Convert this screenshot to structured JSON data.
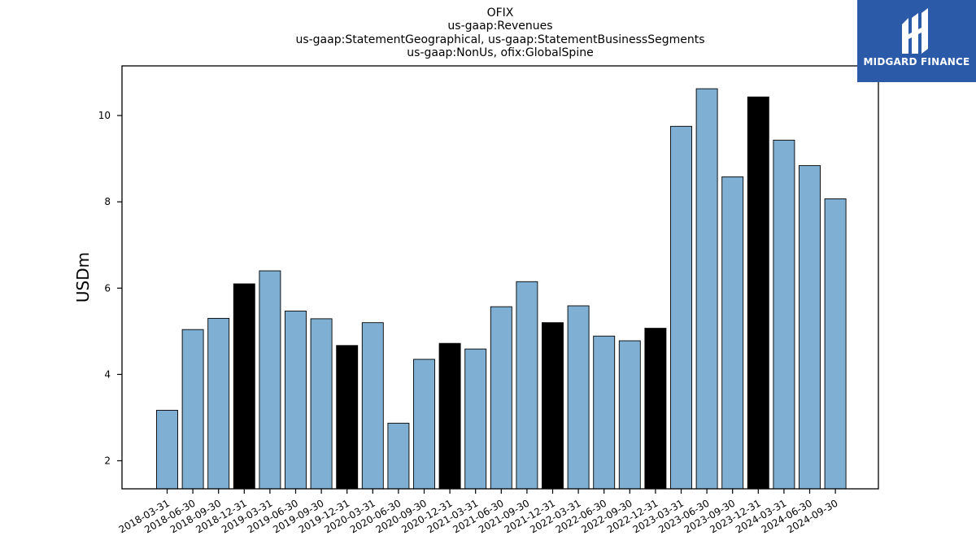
{
  "logo": {
    "text": "MIDGARD FINANCE"
  },
  "chart_data": {
    "type": "bar",
    "title": [
      "OFIX",
      "us-gaap:Revenues",
      "us-gaap:StatementGeographical, us-gaap:StatementBusinessSegments",
      "us-gaap:NonUs, ofix:GlobalSpine"
    ],
    "xlabel": "",
    "ylabel": "USDm",
    "ylim": [
      1.35,
      11.15
    ],
    "yticks": [
      2,
      4,
      6,
      8,
      10
    ],
    "grid": false,
    "colors": {
      "quarter": "#7fb0d4",
      "year_end": "#000000",
      "edge": "#000000"
    },
    "categories": [
      "2018-03-31",
      "2018-06-30",
      "2018-09-30",
      "2018-12-31",
      "2019-03-31",
      "2019-06-30",
      "2019-09-30",
      "2019-12-31",
      "2020-03-31",
      "2020-06-30",
      "2020-09-30",
      "2020-12-31",
      "2021-03-31",
      "2021-06-30",
      "2021-09-30",
      "2021-12-31",
      "2022-03-31",
      "2022-06-30",
      "2022-09-30",
      "2022-12-31",
      "2023-03-31",
      "2023-06-30",
      "2023-09-30",
      "2023-12-31",
      "2024-03-31",
      "2024-06-30",
      "2024-09-30"
    ],
    "values": [
      3.17,
      5.04,
      5.3,
      6.1,
      6.4,
      5.47,
      5.29,
      4.67,
      5.2,
      2.87,
      4.35,
      4.72,
      4.59,
      5.57,
      6.15,
      5.2,
      5.59,
      4.89,
      4.78,
      5.07,
      9.75,
      10.62,
      8.58,
      10.43,
      9.43,
      8.84,
      8.07
    ],
    "highlight": [
      false,
      false,
      false,
      true,
      false,
      false,
      false,
      true,
      false,
      false,
      false,
      true,
      false,
      false,
      false,
      true,
      false,
      false,
      false,
      true,
      false,
      false,
      false,
      true,
      false,
      false,
      false
    ]
  }
}
